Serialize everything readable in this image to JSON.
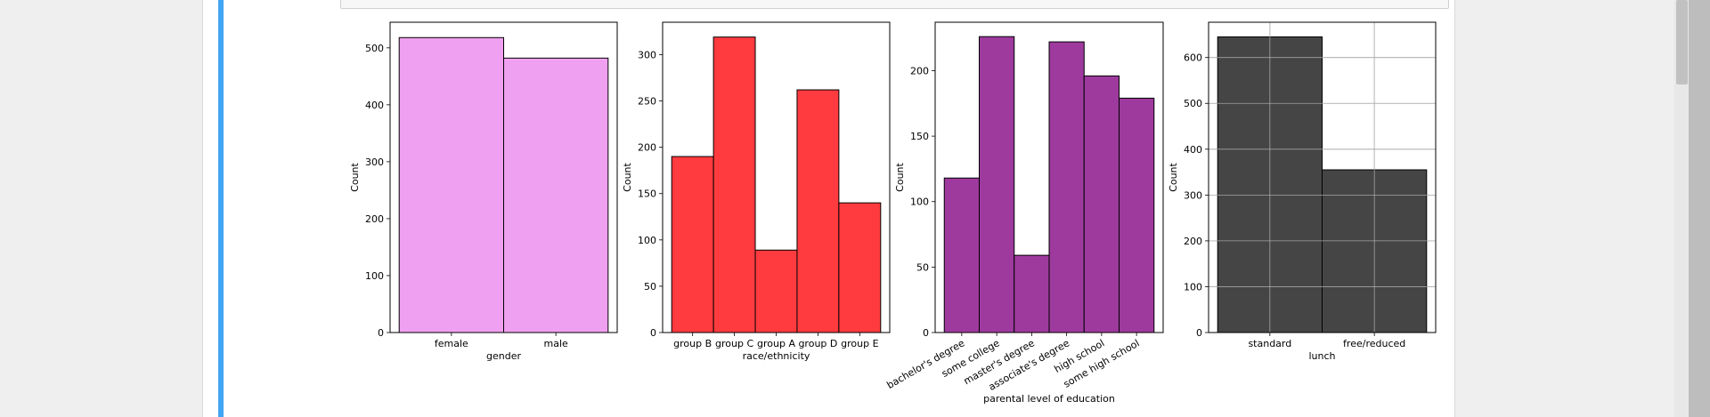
{
  "chart_data": [
    {
      "type": "bar",
      "xlabel": "gender",
      "ylabel": "Count",
      "categories": [
        "female",
        "male"
      ],
      "values": [
        518,
        482
      ],
      "ylim": [
        0,
        545
      ],
      "yticks": [
        0,
        100,
        200,
        300,
        400,
        500
      ],
      "color": "#f0a0f0",
      "grid": false,
      "rotate_xticks": false
    },
    {
      "type": "bar",
      "xlabel": "race/ethnicity",
      "ylabel": "Count",
      "categories": [
        "group B",
        "group C",
        "group A",
        "group D",
        "group E"
      ],
      "values": [
        190,
        319,
        89,
        262,
        140
      ],
      "ylim": [
        0,
        335
      ],
      "yticks": [
        0,
        50,
        100,
        150,
        200,
        250,
        300
      ],
      "color": "#ff3b3f",
      "grid": false,
      "rotate_xticks": false
    },
    {
      "type": "bar",
      "xlabel": "parental level of education",
      "ylabel": "Count",
      "categories": [
        "bachelor's degree",
        "some college",
        "master's degree",
        "associate's degree",
        "high school",
        "some high school"
      ],
      "values": [
        118,
        226,
        59,
        222,
        196,
        179
      ],
      "ylim": [
        0,
        237
      ],
      "yticks": [
        0,
        50,
        100,
        150,
        200
      ],
      "color": "#9e3a9e",
      "grid": false,
      "rotate_xticks": true
    },
    {
      "type": "bar",
      "xlabel": "lunch",
      "ylabel": "Count",
      "categories": [
        "standard",
        "free/reduced"
      ],
      "values": [
        645,
        355
      ],
      "ylim": [
        0,
        677
      ],
      "yticks": [
        0,
        100,
        200,
        300,
        400,
        500,
        600
      ],
      "color": "#3b3b3b",
      "grid": true,
      "rotate_xticks": false
    }
  ]
}
